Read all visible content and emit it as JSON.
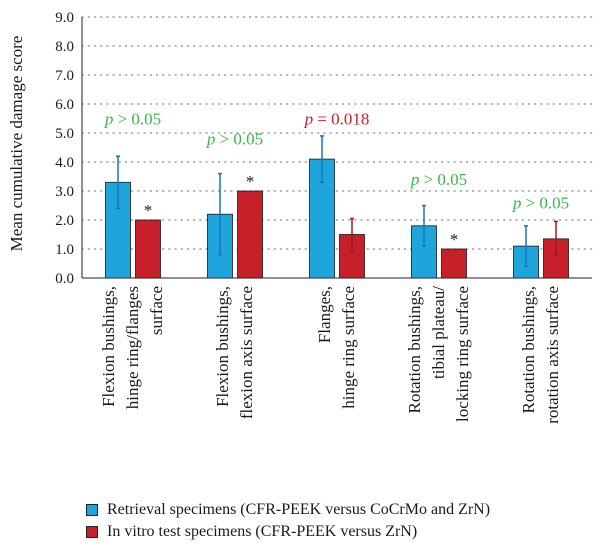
{
  "chart_data": {
    "type": "bar",
    "ylabel": "Mean cumulative damage score",
    "xlabel": "",
    "ylim": [
      0,
      9
    ],
    "yticks": [
      "0.0",
      "1.0",
      "2.0",
      "3.0",
      "4.0",
      "5.0",
      "6.0",
      "7.0",
      "8.0",
      "9.0"
    ],
    "grid": true,
    "legend_position": "bottom",
    "categories": [
      [
        "Flexion bushings,",
        "hinge ring/flanges",
        "surface"
      ],
      [
        "Flexion bushings,",
        "flexion axis surface"
      ],
      [
        "Flanges,",
        "hinge ring surface"
      ],
      [
        "Rotation bushings,",
        "tibial plateau/",
        "locking ring surface"
      ],
      [
        "Rotation bushings,",
        "rotation axis surface"
      ]
    ],
    "series": [
      {
        "name": "Retrieval specimens (CFR-PEEK versus CoCrMo and ZrN)",
        "color": "#1ea6dc",
        "values": [
          3.3,
          2.2,
          4.1,
          1.8,
          1.1
        ],
        "error": [
          [
            2.4,
            4.2
          ],
          [
            0.8,
            3.6
          ],
          [
            3.3,
            4.9
          ],
          [
            1.1,
            2.5
          ],
          [
            0.4,
            1.8
          ]
        ]
      },
      {
        "name": "In vitro test specimens (CFR-PEEK versus ZrN)",
        "color": "#c8202a",
        "values": [
          2.0,
          3.0,
          1.5,
          1.0,
          1.35
        ],
        "error": [
          null,
          null,
          [
            0.9,
            2.05
          ],
          null,
          [
            0.8,
            1.95
          ]
        ]
      }
    ],
    "annotations": [
      {
        "category": 0,
        "text": "p > 0.05",
        "color": "#3db54a",
        "y": 5.3
      },
      {
        "category": 1,
        "text": "p > 0.05",
        "color": "#3db54a",
        "y": 4.6
      },
      {
        "category": 2,
        "text": "p = 0.018",
        "color": "#c8202a",
        "y": 5.3
      },
      {
        "category": 3,
        "text": "p > 0.05",
        "color": "#3db54a",
        "y": 3.2
      },
      {
        "category": 4,
        "text": "p > 0.05",
        "color": "#3db54a",
        "y": 2.4
      }
    ],
    "significance_marker": "*",
    "significant_bars": [
      0,
      1,
      3
    ]
  }
}
